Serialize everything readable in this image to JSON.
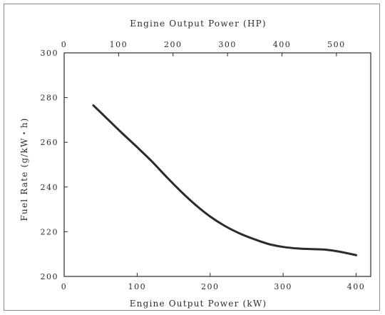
{
  "chart_data": {
    "type": "line",
    "title": "",
    "xlabel": "Engine Output Power (kW)",
    "x2label": "Engine Output Power (HP)",
    "ylabel": "Fuel Rate (g/kW・h)",
    "xlim": [
      0,
      420
    ],
    "x2lim": [
      0,
      563
    ],
    "ylim": [
      200,
      300
    ],
    "xticks": [
      0,
      100,
      200,
      300,
      400
    ],
    "x2ticks": [
      0,
      100,
      200,
      300,
      400,
      500
    ],
    "yticks": [
      200,
      220,
      240,
      260,
      280,
      300
    ],
    "grid": false,
    "legend": "none",
    "series": [
      {
        "x": [
          40,
          60,
          80,
          100,
          120,
          140,
          160,
          180,
          200,
          220,
          240,
          260,
          280,
          300,
          320,
          340,
          360,
          380,
          400
        ],
        "y": [
          276.5,
          270.2,
          263.9,
          257.8,
          251.5,
          244.6,
          238.0,
          232.0,
          226.8,
          222.6,
          219.3,
          216.7,
          214.5,
          213.2,
          212.5,
          212.2,
          211.9,
          210.9,
          209.5
        ],
        "color": "#2b2b2b"
      }
    ]
  }
}
